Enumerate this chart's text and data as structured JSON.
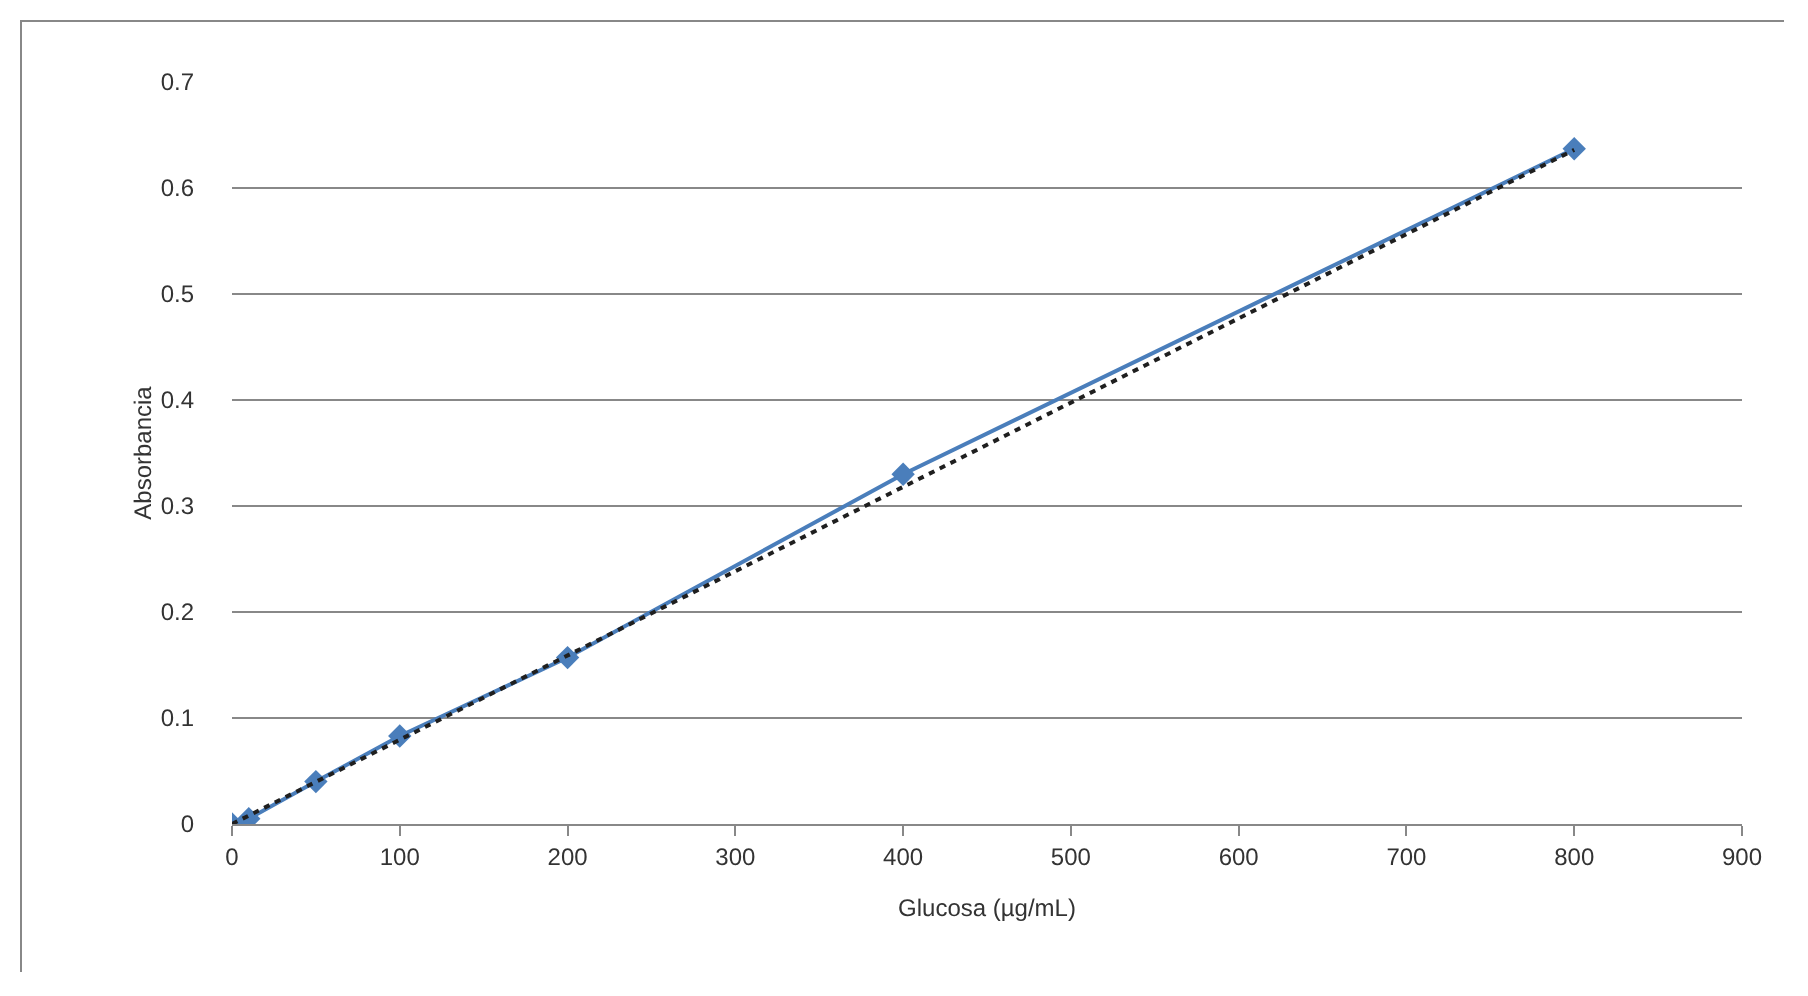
{
  "chart_data": {
    "type": "line",
    "xlabel": "Glucosa (µg/mL)",
    "ylabel": "Absorbancia",
    "xlim": [
      0,
      900
    ],
    "xticks": [
      0,
      100,
      200,
      300,
      400,
      500,
      600,
      700,
      800,
      900
    ],
    "ylim": [
      0,
      0.7
    ],
    "yticks": [
      0,
      0.1,
      0.2,
      0.3,
      0.4,
      0.5,
      0.6,
      0.7
    ],
    "grid": "y",
    "marker": "diamond",
    "line_style": "solid",
    "series": [
      {
        "color": "#4a7ebb",
        "x": [
          0,
          10,
          50,
          100,
          200,
          400,
          800
        ],
        "values": [
          0,
          0.005,
          0.04,
          0.083,
          0.157,
          0.33,
          0.637
        ]
      },
      {
        "type": "line",
        "color": "#1f1f1f",
        "marker": "none",
        "line_style": "dotted",
        "x": [
          0,
          800
        ],
        "values": [
          0,
          0.636
        ]
      }
    ]
  }
}
